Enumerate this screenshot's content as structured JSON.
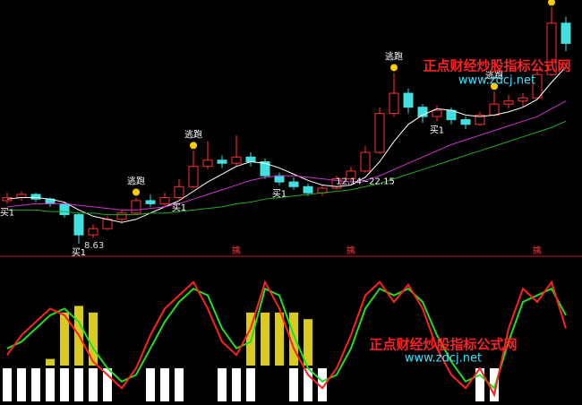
{
  "chart_data": [
    {
      "type": "candlestick",
      "open": [
        11.4,
        11.6,
        11.8,
        11.5,
        11.2,
        10.5,
        9.2,
        9.6,
        10.2,
        10.6,
        11.4,
        11.2,
        11.6,
        12.3,
        13.6,
        14.0,
        13.8,
        14.2,
        13.9,
        13.0,
        12.6,
        12.3,
        11.9,
        12.2,
        12.8,
        13.3,
        14.5,
        17.0,
        18.3,
        17.4,
        16.8,
        17.2,
        16.6,
        16.3,
        16.9,
        17.6,
        17.8,
        18.0,
        19.5,
        22.8
      ],
      "high": [
        11.9,
        12.0,
        11.9,
        11.6,
        11.3,
        10.6,
        9.9,
        10.4,
        10.8,
        11.6,
        11.8,
        11.9,
        12.8,
        14.6,
        15.2,
        14.3,
        15.6,
        14.5,
        14.1,
        13.2,
        12.9,
        12.5,
        12.4,
        13.0,
        13.6,
        14.9,
        17.4,
        19.6,
        18.6,
        17.6,
        17.5,
        17.4,
        16.8,
        17.1,
        18.4,
        18.2,
        18.3,
        19.8,
        23.8,
        23.2
      ],
      "low": [
        11.2,
        11.4,
        11.3,
        11.0,
        10.3,
        8.63,
        9.0,
        9.5,
        10.0,
        10.5,
        11.0,
        11.0,
        11.5,
        12.2,
        13.4,
        13.5,
        13.6,
        13.6,
        12.8,
        12.4,
        12.1,
        11.7,
        11.7,
        12.1,
        12.6,
        13.2,
        14.4,
        16.8,
        17.0,
        16.4,
        16.5,
        16.3,
        16.0,
        16.2,
        16.8,
        17.3,
        17.4,
        17.9,
        19.4,
        21.0
      ],
      "close": [
        11.6,
        11.8,
        11.5,
        11.2,
        10.5,
        9.2,
        9.6,
        10.2,
        10.6,
        11.4,
        11.2,
        11.6,
        12.3,
        13.6,
        14.0,
        13.8,
        14.2,
        13.9,
        13.0,
        12.6,
        12.3,
        11.9,
        12.2,
        12.8,
        13.3,
        14.5,
        17.0,
        18.3,
        17.4,
        16.8,
        17.2,
        16.6,
        16.3,
        16.9,
        17.6,
        17.8,
        18.0,
        19.5,
        22.8,
        21.5
      ],
      "up_color": "#ff3030",
      "down_color": "#40e0e0",
      "ylim": [
        8,
        24
      ],
      "lines": [
        {
          "color": "#ffffff",
          "values": [
            11.5,
            11.6,
            11.6,
            11.5,
            11.3,
            10.8,
            10.4,
            10.2,
            10.0,
            10.2,
            10.6,
            11.0,
            11.4,
            12.0,
            12.6,
            13.1,
            13.6,
            13.9,
            13.8,
            13.5,
            13.1,
            12.7,
            12.4,
            12.3,
            12.4,
            12.9,
            13.9,
            15.2,
            16.3,
            16.9,
            17.3,
            17.2,
            16.9,
            16.8,
            16.9,
            17.1,
            17.4,
            17.9,
            19.0,
            20.0
          ]
        },
        {
          "color": "#cc33cc",
          "values": [
            11.0,
            11.1,
            11.2,
            11.2,
            11.2,
            11.1,
            11.0,
            10.9,
            10.8,
            10.8,
            10.9,
            11.0,
            11.2,
            11.5,
            11.8,
            12.1,
            12.4,
            12.7,
            12.9,
            13.0,
            13.0,
            12.9,
            12.8,
            12.7,
            12.6,
            12.7,
            13.0,
            13.4,
            13.8,
            14.2,
            14.6,
            15.0,
            15.3,
            15.6,
            15.9,
            16.2,
            16.5,
            16.8,
            17.3,
            17.8
          ]
        },
        {
          "color": "#22aa22",
          "values": [
            10.8,
            10.8,
            10.8,
            10.7,
            10.7,
            10.6,
            10.6,
            10.5,
            10.5,
            10.5,
            10.6,
            10.6,
            10.7,
            10.8,
            10.9,
            11.0,
            11.2,
            11.3,
            11.5,
            11.6,
            11.7,
            11.8,
            11.9,
            12.0,
            12.1,
            12.3,
            12.5,
            12.8,
            13.1,
            13.4,
            13.7,
            14.0,
            14.3,
            14.6,
            14.9,
            15.2,
            15.5,
            15.8,
            16.1,
            16.5
          ]
        }
      ],
      "annotations": [
        {
          "text": "逃跑",
          "index": 9,
          "position": "above"
        },
        {
          "text": "逃跑",
          "index": 13,
          "position": "above"
        },
        {
          "text": "逃跑",
          "index": 27,
          "position": "above"
        },
        {
          "text": "逃跑",
          "index": 34,
          "position": "above"
        },
        {
          "text": "逃跑",
          "index": 38,
          "position": "above"
        },
        {
          "text": "买1",
          "index": 0,
          "position": "below"
        },
        {
          "text": "买1",
          "index": 5,
          "position": "below"
        },
        {
          "text": "买1",
          "index": 12,
          "position": "below"
        },
        {
          "text": "买1",
          "index": 19,
          "position": "below"
        },
        {
          "text": "买1",
          "index": 30,
          "position": "below"
        },
        {
          "text": "12.14~22.15",
          "index": 25,
          "position": "below"
        }
      ],
      "markers": [
        {
          "text": "擒",
          "index": 16
        },
        {
          "text": "擒",
          "index": 24
        },
        {
          "text": "擒",
          "index": 37
        }
      ],
      "watermarks": [
        "正点财经炒股指标公式网",
        "www.zdcj.net"
      ]
    },
    {
      "type": "oscillator",
      "ylim": [
        0,
        100
      ],
      "series": [
        {
          "color": "#22dd22",
          "values": [
            40,
            45,
            55,
            65,
            70,
            60,
            40,
            25,
            15,
            20,
            40,
            60,
            75,
            85,
            80,
            55,
            40,
            45,
            85,
            80,
            50,
            25,
            15,
            20,
            40,
            70,
            85,
            80,
            85,
            75,
            50,
            30,
            15,
            20,
            10,
            45,
            75,
            80,
            85,
            65
          ]
        },
        {
          "color": "#ff2020",
          "values": [
            35,
            50,
            60,
            70,
            65,
            50,
            30,
            20,
            10,
            25,
            50,
            70,
            80,
            90,
            70,
            45,
            35,
            55,
            90,
            70,
            40,
            20,
            10,
            25,
            50,
            80,
            90,
            75,
            88,
            70,
            40,
            20,
            10,
            25,
            5,
            55,
            85,
            75,
            90,
            55
          ]
        }
      ],
      "yellow_bars": {
        "color": "#ffee22",
        "values": [
          0,
          0,
          0,
          5,
          40,
          45,
          40,
          0,
          0,
          0,
          0,
          0,
          0,
          0,
          0,
          0,
          0,
          40,
          40,
          40,
          40,
          35,
          0,
          0,
          0,
          0,
          0,
          0,
          0,
          0,
          0,
          0,
          0,
          0,
          0,
          0,
          0,
          0,
          0,
          0
        ]
      },
      "white_bars": {
        "color": "#ffffff",
        "values": [
          25,
          25,
          25,
          25,
          25,
          25,
          25,
          25,
          0,
          0,
          25,
          25,
          25,
          0,
          0,
          25,
          25,
          25,
          0,
          0,
          25,
          25,
          25,
          0,
          0,
          0,
          0,
          0,
          0,
          0,
          0,
          0,
          0,
          25,
          25,
          0,
          0,
          0,
          0,
          0
        ]
      },
      "watermarks": [
        "正点财经炒股指标公式网",
        "www.zdcj.net"
      ]
    }
  ]
}
